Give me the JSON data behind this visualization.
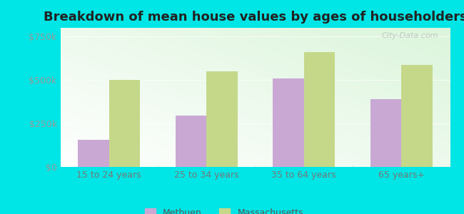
{
  "title": "Breakdown of mean house values by ages of householders",
  "categories": [
    "15 to 24 years",
    "25 to 34 years",
    "35 to 64 years",
    "65 years+"
  ],
  "methuen_values": [
    155000,
    295000,
    510000,
    390000
  ],
  "massachusetts_values": [
    500000,
    550000,
    660000,
    585000
  ],
  "methuen_color": "#c9a8d4",
  "massachusetts_color": "#c5d88a",
  "ylim": [
    0,
    800000
  ],
  "yticks": [
    0,
    250000,
    500000,
    750000
  ],
  "ytick_labels": [
    "$0",
    "$250k",
    "$500k",
    "$750k"
  ],
  "outer_background": "#00e5e5",
  "title_fontsize": 13,
  "legend_methuen": "Methuen",
  "legend_massachusetts": "Massachusetts",
  "bar_width": 0.32,
  "watermark": "City-Data.com"
}
